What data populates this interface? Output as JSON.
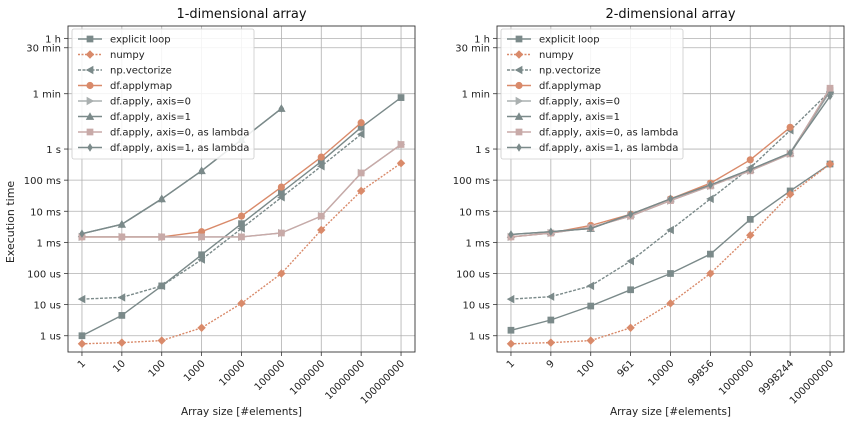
{
  "figure": {
    "ylabel": "Execution time",
    "xlabel": "Array size [#elements]"
  },
  "legend_labels": [
    "explicit loop",
    "numpy",
    "np.vectorize",
    "df.applymap",
    "df.apply, axis=0",
    "df.apply, axis=1",
    "df.apply, axis=0, as lambda",
    "df.apply, axis=1, as lambda"
  ],
  "colors": {
    "gray": "#7b8a8a",
    "orange": "#d98a6a",
    "light_gray": "#aab0b0",
    "pink": "#c8aaa8",
    "grid": "#b0b0b0"
  },
  "y_ticks": [
    "1 us",
    "10 us",
    "100 us",
    "1 ms",
    "10 ms",
    "100 ms",
    "1 s",
    "1 min",
    "30 min",
    "1 h"
  ],
  "y_tick_values": [
    1e-06,
    1e-05,
    0.0001,
    0.001,
    0.01,
    0.1,
    1,
    60,
    1800,
    3600
  ],
  "chart_data": [
    {
      "type": "line",
      "title": "1-dimensional array",
      "xlabel": "Array size [#elements]",
      "ylabel": "Execution time",
      "x_scale": "log",
      "y_scale": "log",
      "x_ticks": [
        "1",
        "10",
        "100",
        "1000",
        "10000",
        "100000",
        "1000000",
        "10000000",
        "100000000"
      ],
      "x": [
        1,
        10,
        100,
        1000,
        10000,
        100000,
        1000000,
        10000000,
        100000000
      ],
      "ylim": [
        "1 us",
        "1 h"
      ],
      "grid": true,
      "legend_position": "top-left",
      "series": [
        {
          "name": "explicit loop",
          "values": [
            1e-06,
            4.5e-06,
            4e-05,
            0.0004,
            0.004,
            0.04,
            0.4,
            5,
            45
          ]
        },
        {
          "name": "numpy",
          "values": [
            5.5e-07,
            6e-07,
            7e-07,
            1.8e-06,
            1.1e-05,
            0.0001,
            0.0025,
            0.045,
            0.35
          ]
        },
        {
          "name": "np.vectorize",
          "values": [
            1.5e-05,
            1.7e-05,
            4e-05,
            0.00028,
            0.0028,
            0.028,
            0.28,
            3,
            null
          ]
        },
        {
          "name": "df.applymap",
          "values": [
            0.0015,
            0.0015,
            0.0015,
            0.0022,
            0.007,
            0.06,
            0.55,
            7,
            null
          ]
        },
        {
          "name": "df.apply, axis=0",
          "values": [
            0.0015,
            0.0015,
            0.0015,
            0.0015,
            0.0015,
            0.002,
            0.007,
            0.17,
            1.4
          ]
        },
        {
          "name": "df.apply, axis=1",
          "values": [
            0.0019,
            0.0038,
            0.025,
            0.2,
            2,
            20,
            null,
            null,
            null
          ]
        },
        {
          "name": "df.apply, axis=0, as lambda",
          "values": [
            0.0015,
            0.0015,
            0.0015,
            0.0015,
            0.0015,
            0.002,
            0.007,
            0.17,
            1.4
          ]
        },
        {
          "name": "df.apply, axis=1, as lambda",
          "values": [
            0.0019,
            0.0038,
            0.025,
            0.2,
            2,
            20,
            null,
            null,
            null
          ]
        }
      ]
    },
    {
      "type": "line",
      "title": "2-dimensional array",
      "xlabel": "Array size [#elements]",
      "ylabel": "",
      "x_scale": "log",
      "y_scale": "log",
      "x_ticks": [
        "1",
        "9",
        "100",
        "961",
        "10000",
        "99856",
        "1000000",
        "9998244",
        "100000000"
      ],
      "x": [
        1,
        9,
        100,
        961,
        10000,
        99856,
        1000000,
        9998244,
        100000000
      ],
      "ylim": [
        "1 us",
        "1 h"
      ],
      "grid": true,
      "legend_position": "top-left",
      "series": [
        {
          "name": "explicit loop",
          "values": [
            1.5e-06,
            3.2e-06,
            9e-06,
            3e-05,
            0.0001,
            0.00042,
            0.0055,
            0.045,
            0.33
          ]
        },
        {
          "name": "numpy",
          "values": [
            5.5e-07,
            6e-07,
            7e-07,
            1.8e-06,
            1.1e-05,
            0.0001,
            0.0017,
            0.035,
            0.33
          ]
        },
        {
          "name": "np.vectorize",
          "values": [
            1.5e-05,
            1.8e-05,
            4e-05,
            0.00025,
            0.0025,
            0.025,
            0.25,
            4,
            72
          ]
        },
        {
          "name": "df.applymap",
          "values": [
            0.0015,
            0.002,
            0.0035,
            0.008,
            0.025,
            0.08,
            0.45,
            5,
            null
          ]
        },
        {
          "name": "df.apply, axis=0",
          "values": [
            0.0015,
            0.002,
            0.003,
            0.007,
            0.022,
            0.065,
            0.2,
            0.7,
            70
          ]
        },
        {
          "name": "df.apply, axis=1",
          "values": [
            0.0018,
            0.0022,
            0.0028,
            0.008,
            0.025,
            0.07,
            0.22,
            0.75,
            80
          ]
        },
        {
          "name": "df.apply, axis=0, as lambda",
          "values": [
            0.0015,
            0.002,
            0.003,
            0.007,
            0.022,
            0.065,
            0.2,
            0.7,
            90
          ]
        },
        {
          "name": "df.apply, axis=1, as lambda",
          "values": [
            0.0018,
            0.0022,
            0.0028,
            0.008,
            0.025,
            0.07,
            0.22,
            0.75,
            50
          ]
        }
      ]
    }
  ]
}
